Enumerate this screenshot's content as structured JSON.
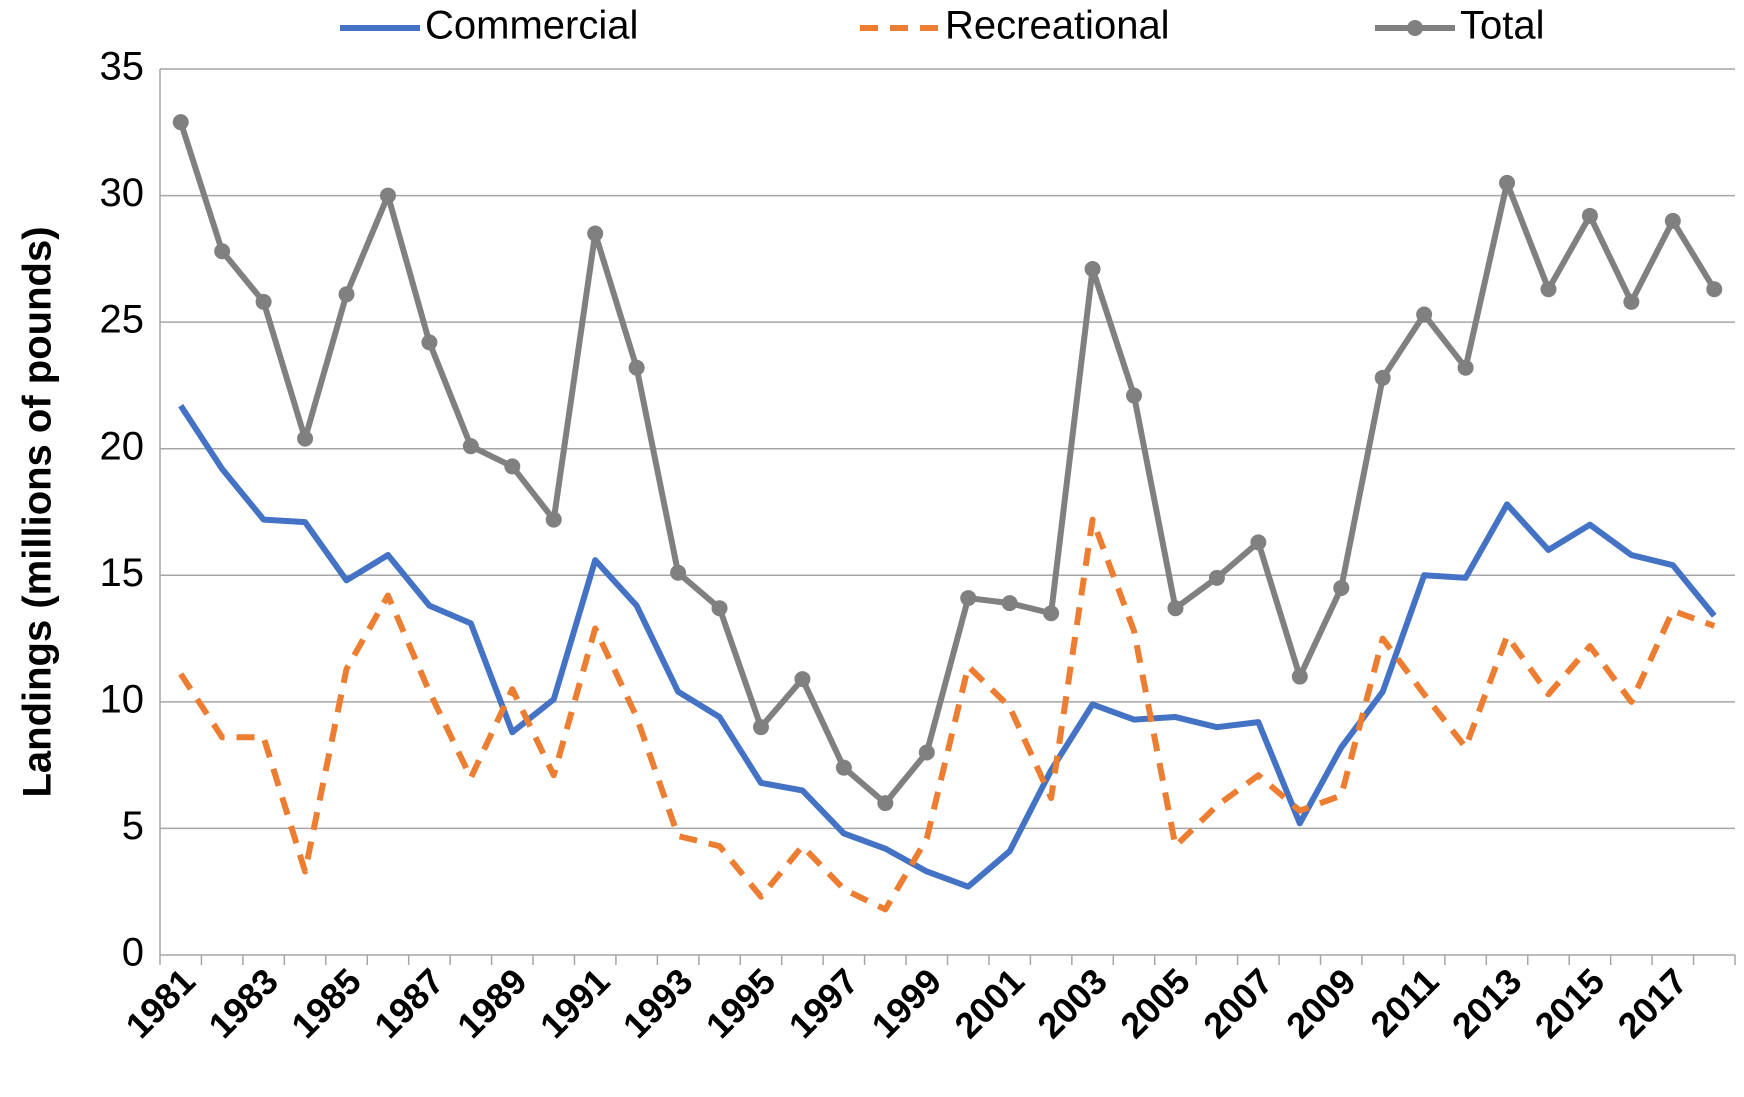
{
  "chart_data": {
    "type": "line",
    "y_label": "Landings (millions of pounds)",
    "categories": [
      "1981",
      null,
      "1983",
      null,
      "1985",
      null,
      "1987",
      null,
      "1989",
      null,
      "1991",
      null,
      "1993",
      null,
      "1995",
      null,
      "1997",
      null,
      "1999",
      null,
      "2001",
      null,
      "2003",
      null,
      "2005",
      null,
      "2007",
      null,
      "2009",
      null,
      "2011",
      null,
      "2013",
      null,
      "2015",
      null,
      "2017",
      null
    ],
    "series": [
      {
        "name": "Commercial",
        "color": "#4472c4",
        "dashed": false,
        "markers": false,
        "values": [
          21.7,
          19.2,
          17.2,
          17.1,
          14.8,
          15.8,
          13.8,
          13.1,
          8.8,
          10.1,
          15.6,
          13.8,
          10.4,
          9.4,
          6.8,
          6.5,
          4.8,
          4.2,
          3.3,
          2.7,
          4.1,
          7.3,
          9.9,
          9.3,
          9.4,
          9.0,
          9.2,
          5.2,
          8.2,
          10.4,
          15.0,
          14.9,
          17.8,
          16.0,
          17.0,
          15.8,
          15.4,
          13.4
        ]
      },
      {
        "name": "Recreational",
        "color": "#ed7d31",
        "dashed": true,
        "markers": false,
        "values": [
          11.1,
          8.6,
          8.6,
          3.3,
          11.3,
          14.2,
          10.4,
          7.0,
          10.5,
          7.1,
          12.9,
          9.4,
          4.7,
          4.3,
          2.3,
          4.3,
          2.6,
          1.8,
          4.6,
          11.4,
          9.8,
          6.2,
          17.2,
          12.8,
          4.3,
          5.9,
          7.1,
          5.7,
          6.3,
          12.5,
          10.3,
          8.2,
          12.6,
          10.3,
          12.2,
          10.0,
          13.6,
          13.0
        ]
      },
      {
        "name": "Total",
        "color": "#808080",
        "dashed": false,
        "markers": true,
        "values": [
          32.9,
          27.8,
          25.8,
          20.4,
          26.1,
          30.0,
          24.2,
          20.1,
          19.3,
          17.2,
          28.5,
          23.2,
          15.1,
          13.7,
          9.0,
          10.9,
          7.4,
          6.0,
          8.0,
          14.1,
          13.9,
          13.5,
          27.1,
          22.1,
          13.7,
          14.9,
          16.3,
          11.0,
          14.5,
          22.8,
          25.3,
          23.2,
          30.5,
          26.3,
          29.2,
          25.8,
          29.0,
          26.3
        ]
      }
    ],
    "ylim": [
      0,
      35
    ],
    "yticks": [
      0,
      5,
      10,
      15,
      20,
      25,
      30,
      35
    ],
    "grid": true,
    "legend": "top"
  }
}
